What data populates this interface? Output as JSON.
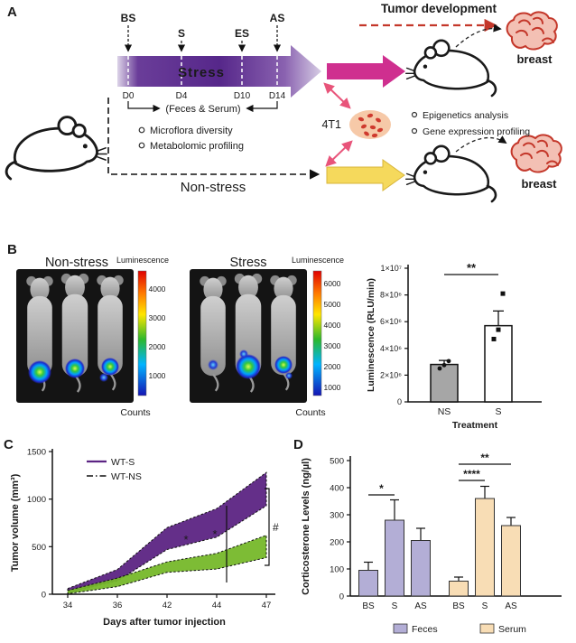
{
  "panel_labels": {
    "a": "A",
    "b": "B",
    "c": "C",
    "d": "D"
  },
  "panel_a": {
    "tumor_development_title": "Tumor development",
    "breast_top": "breast",
    "breast_bottom": "breast",
    "cells_label": "4T1",
    "timeline": {
      "top_marks": [
        "BS",
        "S",
        "ES",
        "AS"
      ],
      "day_marks": [
        "D0",
        "D4",
        "D10",
        "D14"
      ],
      "stress_label": "Stress",
      "feces_serum_label": "(Feces & Serum)",
      "nonstress_label": "Non-stress"
    },
    "left_bullets": [
      "Microflora diversity",
      "Metabolomic profiling"
    ],
    "right_bullets": [
      "Epigenetics analysis",
      "Gene expression profiling"
    ],
    "colors": {
      "stress_purple": "#56278a",
      "magenta_arrow": "#cf2f8f",
      "yellow_arrow": "#f5d95c",
      "red_accent": "#c4372a",
      "pink_arrow": "#e8547a"
    }
  },
  "panel_b": {
    "nonstress_title": "Non-stress",
    "stress_title": "Stress",
    "luminescence_label_1": "Luminescence",
    "luminescence_label_2": "Luminescence",
    "counts_label_1": "Counts",
    "counts_label_2": "Counts",
    "scale1_ticks": [
      "4000",
      "3000",
      "2000",
      "1000"
    ],
    "scale2_ticks": [
      "6000",
      "5000",
      "4000",
      "3000",
      "2000",
      "1000"
    ]
  },
  "chart_data": [
    {
      "id": "chartB",
      "type": "bar",
      "categories": [
        "NS",
        "S"
      ],
      "values": [
        2800000,
        5700000
      ],
      "errors": [
        300000,
        1100000
      ],
      "points": [
        [
          2500000,
          2750000,
          3050000
        ],
        [
          4700000,
          5400000,
          8100000
        ]
      ],
      "bar_colors": [
        "#a6a6a6",
        "#ffffff"
      ],
      "ylabel": "Luminescence (RLU/min)",
      "xlabel": "Treatment",
      "ylim": [
        0,
        10000000
      ],
      "ytick_values": [
        0,
        2000000,
        4000000,
        6000000,
        8000000,
        10000000
      ],
      "ytick_labels": [
        "0",
        "2×10⁶",
        "4×10⁶",
        "6×10⁶",
        "8×10⁶",
        "1×10⁷"
      ],
      "significance": "**",
      "legend_position": "none",
      "grid": false
    },
    {
      "id": "chartC",
      "type": "area",
      "x_values": [
        34,
        36,
        42,
        44,
        47
      ],
      "x_labels": [
        "34",
        "36",
        "42",
        "44",
        "47"
      ],
      "series": [
        {
          "name": "WT-S",
          "color": "#5c2483",
          "label_color": "#7b3fa0",
          "upper": [
            60,
            260,
            700,
            900,
            1280
          ],
          "lower": [
            15,
            140,
            470,
            600,
            930
          ]
        },
        {
          "name": "WT-NS",
          "color": "#76b82a",
          "label_color": "#3fae49",
          "upper": [
            40,
            170,
            340,
            430,
            620
          ],
          "lower": [
            5,
            80,
            230,
            265,
            385
          ]
        }
      ],
      "ylabel": "Tumor volume (mm³)",
      "xlabel": "Days after tumor injection",
      "ylim": [
        0,
        1500
      ],
      "ytick_values": [
        0,
        500,
        1000,
        1500
      ],
      "significance": [
        "*",
        "*",
        "#"
      ],
      "legend_position": "top-left",
      "grid": false
    },
    {
      "id": "chartD",
      "type": "bar",
      "groups": [
        {
          "name": "Feces",
          "color": "#b3aed6",
          "categories": [
            "BS",
            "S",
            "AS"
          ],
          "values": [
            95,
            280,
            205
          ],
          "errors": [
            30,
            75,
            45
          ]
        },
        {
          "name": "Serum",
          "color": "#f8ddb5",
          "categories": [
            "BS",
            "S",
            "AS"
          ],
          "values": [
            55,
            360,
            260
          ],
          "errors": [
            15,
            45,
            30
          ]
        }
      ],
      "ylabel": "Corticosterone Levels (ng/µl)",
      "ylim": [
        0,
        500
      ],
      "ytick_values": [
        0,
        100,
        200,
        300,
        400,
        500
      ],
      "significance": [
        {
          "label": "*",
          "group": "Feces",
          "from": "BS",
          "to": "S"
        },
        {
          "label": "****",
          "group": "Serum",
          "from": "BS",
          "to": "S"
        },
        {
          "label": "**",
          "group": "Serum",
          "from": "BS",
          "to": "AS"
        }
      ],
      "legend_position": "bottom",
      "grid": false
    }
  ]
}
